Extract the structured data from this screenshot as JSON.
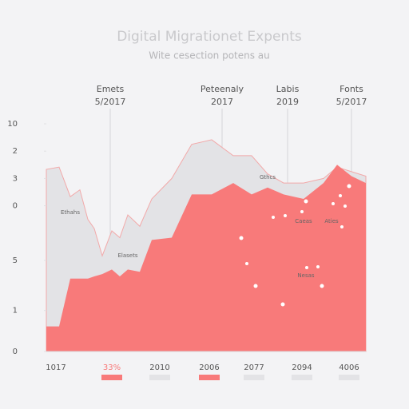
{
  "chart_data": {
    "type": "area",
    "title": "Digital Migrationet Expents",
    "subtitle": "Wite cesection potens au",
    "x": [
      0,
      4,
      7.5,
      10.5,
      13,
      15,
      17.5,
      20.5,
      23,
      25.5,
      29.25,
      33,
      39.25,
      45.5,
      51.75,
      58.5,
      64.25,
      69.25,
      74.25,
      80.5,
      86.75,
      91,
      95.5,
      100
    ],
    "xlim": [
      0,
      100
    ],
    "xticks": [
      {
        "value": 3,
        "label": "1017"
      },
      {
        "value": 20.5,
        "label": "33%"
      },
      {
        "value": 35.5,
        "label": "2010"
      },
      {
        "value": 51,
        "label": "2006"
      },
      {
        "value": 65,
        "label": "2077"
      },
      {
        "value": 80,
        "label": "2094"
      },
      {
        "value": 94.75,
        "label": "4006"
      }
    ],
    "ylim": [
      0,
      10
    ],
    "yticks": [
      10,
      {
        "value": 8.8,
        "label": "2"
      },
      {
        "value": 7.6,
        "label": "3"
      },
      {
        "value": 6.4,
        "label": "0"
      },
      {
        "value": 4,
        "label": "5"
      },
      {
        "value": 1.8,
        "label": "1"
      },
      0
    ],
    "series": [
      {
        "color": "#e3e3e6",
        "values": [
          8.0,
          8.1,
          6.8,
          7.1,
          5.8,
          5.4,
          4.2,
          5.3,
          5.0,
          6.0,
          5.5,
          6.7,
          7.6,
          9.1,
          9.3,
          8.6,
          8.6,
          7.8,
          7.4,
          7.4,
          7.6,
          8.1,
          7.9,
          7.7
        ]
      },
      {
        "color": "#f87a7a",
        "values": [
          1.1,
          1.1,
          3.2,
          3.2,
          3.2,
          3.3,
          3.4,
          3.6,
          3.3,
          3.6,
          3.5,
          4.9,
          5.0,
          6.9,
          6.9,
          7.4,
          6.9,
          7.2,
          6.9,
          6.7,
          7.4,
          8.2,
          7.7,
          7.4
        ]
      }
    ],
    "reference_lines": [
      {
        "value": 20,
        "label": "Emets",
        "date": "5/2017"
      },
      {
        "value": 55,
        "label": "Peteenaly",
        "date": "2017"
      },
      {
        "value": 75.5,
        "label": "Labis",
        "date": "2019"
      },
      {
        "value": 95.5,
        "label": "Fonts",
        "date": "5/2017"
      }
    ],
    "annotations": [
      "Ethahs",
      "Elasets",
      "Gthcs",
      "Caeas",
      "Aties",
      "Nesas"
    ]
  }
}
